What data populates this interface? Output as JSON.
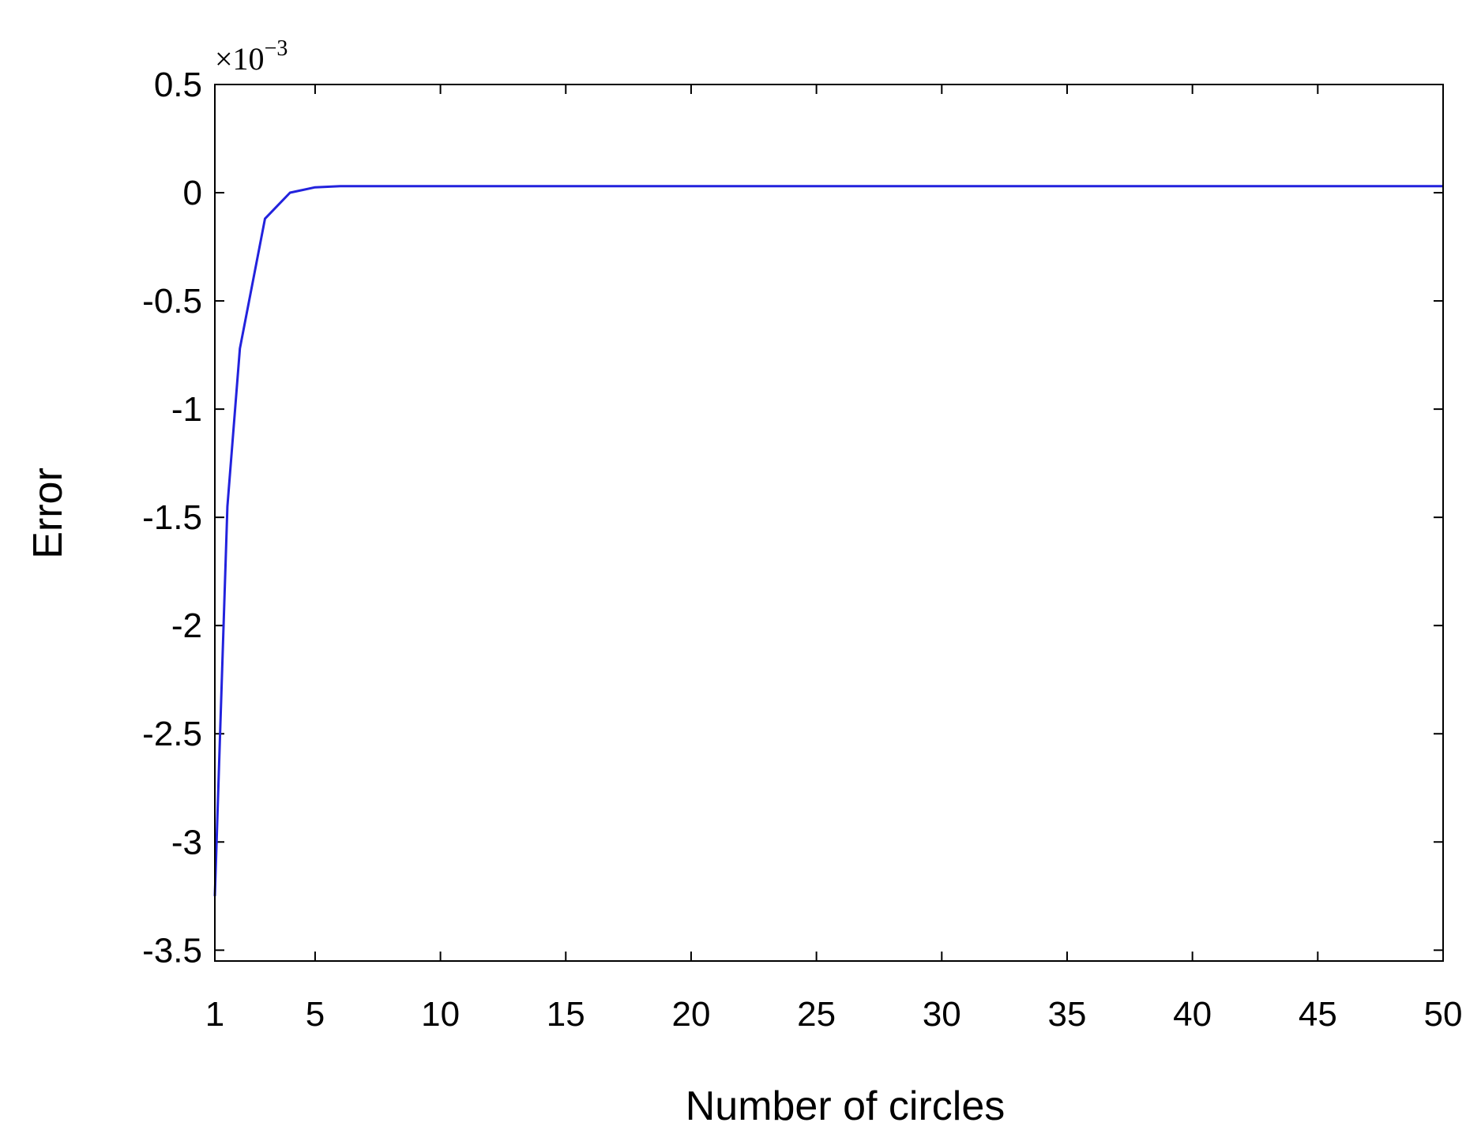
{
  "chart_data": {
    "type": "line",
    "xlabel": "Number of circles",
    "ylabel": "Error",
    "y_multiplier_base": "×10",
    "y_multiplier_exponent": "−3",
    "xlim": [
      1,
      50
    ],
    "ylim": [
      -3.55,
      0.5
    ],
    "x_ticks": [
      1,
      5,
      10,
      15,
      20,
      25,
      30,
      35,
      40,
      45,
      50
    ],
    "x_tick_labels": [
      "1",
      "5",
      "10",
      "15",
      "20",
      "25",
      "30",
      "35",
      "40",
      "45",
      "50"
    ],
    "y_ticks": [
      0.5,
      0,
      -0.5,
      -1,
      -1.5,
      -2,
      -2.5,
      -3,
      -3.5
    ],
    "y_tick_labels": [
      "0.5",
      "0",
      "-0.5",
      "-1",
      "-1.5",
      "-2",
      "-2.5",
      "-3",
      "-3.5"
    ],
    "grid": false,
    "line_color": "#2222dd",
    "series": [
      {
        "x": [
          1,
          1.5,
          2,
          3,
          4,
          5,
          6,
          8,
          10,
          15,
          20,
          25,
          30,
          35,
          40,
          45,
          50
        ],
        "y": [
          -3.25,
          -1.45,
          -0.72,
          -0.12,
          0.0,
          0.025,
          0.03,
          0.03,
          0.03,
          0.03,
          0.03,
          0.03,
          0.03,
          0.03,
          0.03,
          0.03,
          0.03
        ]
      }
    ]
  }
}
